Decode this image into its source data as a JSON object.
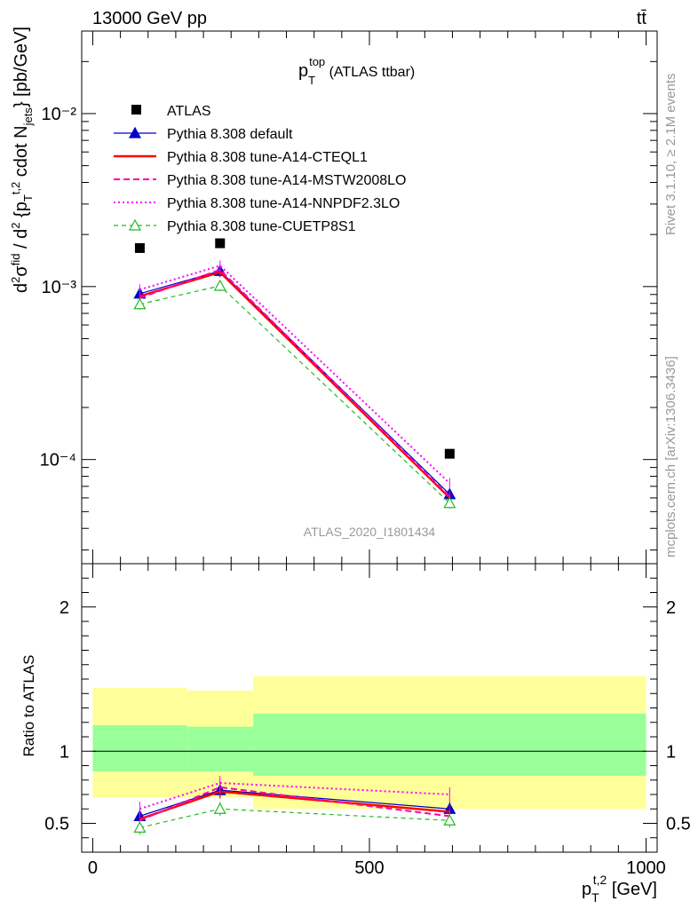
{
  "header": {
    "left": "13000 GeV pp",
    "right": "tt̄"
  },
  "plot_title": {
    "main": "p",
    "sub": "T",
    "sup": "top",
    "rest": " (ATLAS ttbar)"
  },
  "watermark": "ATLAS_2020_I1801434",
  "side_labels": {
    "rivet": "Rivet 3.1.10, ≥ 2.1M events",
    "mcplots": "mcplots.cern.ch [arXiv:1306.3436]"
  },
  "axes": {
    "y_main_label": "d²σ^fid / d² {p_T^t,2 cdot N_jets} [pb/GeV]",
    "y_ratio_label": "Ratio to ATLAS",
    "x_label_main": "p",
    "x_label_sub": "T",
    "x_label_sup": "t,2",
    "x_label_unit": " [GeV]",
    "x_ticks": [
      "0",
      "500",
      "1000"
    ],
    "y_main_ticks": [
      "10⁻²",
      "10⁻³",
      "10⁻⁴"
    ],
    "y_ratio_ticks": [
      "0.5",
      "1",
      "2"
    ]
  },
  "legend": [
    {
      "name": "ATLAS",
      "color": "#000000",
      "style": "marker-square"
    },
    {
      "name": "Pythia 8.308 default",
      "color": "#0000cc",
      "style": "solid-triangle"
    },
    {
      "name": "Pythia 8.308 tune-A14-CTEQL1",
      "color": "#ff0000",
      "style": "solid-thick"
    },
    {
      "name": "Pythia 8.308 tune-A14-MSTW2008LO",
      "color": "#ff00aa",
      "style": "dashed"
    },
    {
      "name": "Pythia 8.308 tune-A14-NNPDF2.3LO",
      "color": "#ff00ff",
      "style": "dotted"
    },
    {
      "name": "Pythia 8.308 tune-CUETP8S1",
      "color": "#22bb22",
      "style": "dashed-open-triangle"
    }
  ],
  "chart_data": {
    "type": "line",
    "x_scale": "linear",
    "y_scale": "log",
    "xlim": [
      -20,
      1020
    ],
    "ylim": [
      2.5e-05,
      0.03
    ],
    "ratio_ylim": [
      0.3,
      2.3
    ],
    "bins": [
      [
        0,
        170
      ],
      [
        170,
        290
      ],
      [
        290,
        1000
      ]
    ],
    "x": [
      85,
      230,
      645
    ],
    "atlas": [
      0.00167,
      0.00178,
      0.000108
    ],
    "series": [
      {
        "name": "Pythia 8.308 default",
        "values": [
          0.00091,
          0.00123,
          6.3e-05
        ],
        "ratio": [
          0.55,
          0.73,
          0.6
        ]
      },
      {
        "name": "Pythia 8.308 tune-A14-CTEQL1",
        "values": [
          0.00088,
          0.00121,
          6e-05
        ],
        "ratio": [
          0.53,
          0.72,
          0.58
        ]
      },
      {
        "name": "Pythia 8.308 tune-A14-MSTW2008LO",
        "values": [
          0.00086,
          0.00125,
          6.1e-05
        ],
        "ratio": [
          0.52,
          0.75,
          0.55
        ]
      },
      {
        "name": "Pythia 8.308 tune-A14-NNPDF2.3LO",
        "values": [
          0.00096,
          0.00132,
          7.3e-05
        ],
        "ratio": [
          0.6,
          0.78,
          0.7
        ]
      },
      {
        "name": "Pythia 8.308 tune-CUETP8S1",
        "values": [
          0.00079,
          0.00101,
          5.6e-05
        ],
        "ratio": [
          0.47,
          0.6,
          0.52
        ]
      }
    ],
    "uncertainty_bands": {
      "inner": [
        [
          0.86,
          1.18
        ],
        [
          0.86,
          1.17
        ],
        [
          0.83,
          1.26
        ]
      ],
      "outer": [
        [
          0.68,
          1.44
        ],
        [
          0.68,
          1.42
        ],
        [
          0.6,
          1.52
        ]
      ]
    }
  }
}
